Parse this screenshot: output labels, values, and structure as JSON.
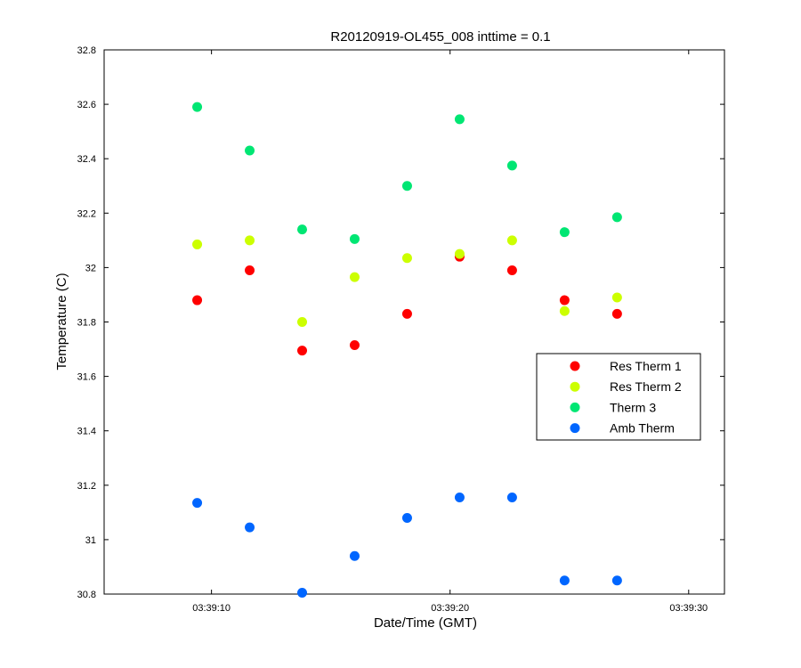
{
  "chart_data": {
    "type": "scatter",
    "title": "R20120919-OL455_008 inttime = 0.1",
    "xlabel": "Date/Time (GMT)",
    "ylabel": "Temperature (C)",
    "x_unit": "seconds",
    "xlim": [
      5.5,
      31.5
    ],
    "ylim": [
      30.8,
      32.8
    ],
    "xticks": [
      10,
      20,
      30
    ],
    "xtick_labels": [
      "03:39:10",
      "03:39:20",
      "03:39:30"
    ],
    "yticks": [
      30.8,
      31,
      31.2,
      31.4,
      31.6,
      31.8,
      32,
      32.2,
      32.4,
      32.6,
      32.8
    ],
    "ytick_labels": [
      "30.8",
      "31",
      "31.2",
      "31.4",
      "31.6",
      "31.8",
      "32",
      "32.2",
      "32.4",
      "32.6",
      "32.8"
    ],
    "x": [
      9.4,
      11.6,
      13.8,
      16.0,
      18.2,
      20.4,
      22.6,
      24.8,
      27.0
    ],
    "grid": false,
    "legend_position": "right-middle",
    "series": [
      {
        "name": "Res Therm 1",
        "color": "#ff0000",
        "values": [
          31.88,
          31.99,
          31.695,
          31.715,
          31.83,
          32.04,
          31.99,
          31.88,
          31.83
        ]
      },
      {
        "name": "Res Therm 2",
        "color": "#ccff00",
        "values": [
          32.085,
          32.1,
          31.8,
          31.965,
          32.035,
          32.05,
          32.1,
          31.84,
          31.89
        ]
      },
      {
        "name": "Therm 3",
        "color": "#00e673",
        "values": [
          32.59,
          32.43,
          32.14,
          32.105,
          32.3,
          32.545,
          32.375,
          32.13,
          32.185
        ]
      },
      {
        "name": "Amb Therm",
        "color": "#0066ff",
        "values": [
          31.135,
          31.045,
          30.805,
          30.94,
          31.08,
          31.155,
          31.155,
          30.85,
          30.85
        ]
      }
    ]
  }
}
